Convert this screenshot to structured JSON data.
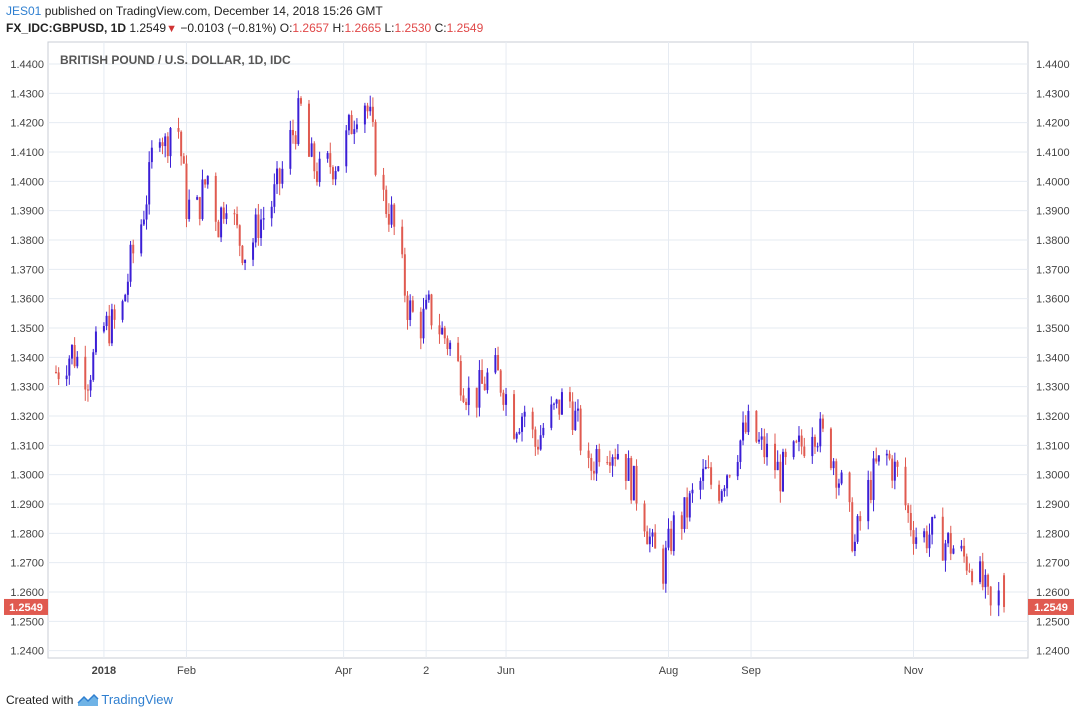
{
  "header": {
    "user": "JES01",
    "published_text": "published on TradingView.com, December 14, 2018 15:26 GMT",
    "symbol": "FX_IDC:GBPUSD, 1D",
    "last": "1.2549",
    "change": "−0.0103 (−0.81%)",
    "o_label": "O:",
    "o_value": "1.2657",
    "h_label": "H:",
    "h_value": "1.2665",
    "l_label": "L:",
    "l_value": "1.2530",
    "c_label": "C:",
    "c_value": "1.2549"
  },
  "footer": {
    "created_with": "Created with",
    "brand": "TradingView"
  },
  "colors": {
    "up": "#3b1fd6",
    "down": "#e05a50",
    "grid": "#e6ebf2",
    "axis_text": "#444444",
    "price_label_bg": "#e05a50",
    "brand": "#2f7fd0"
  },
  "chart_data": {
    "type": "candlestick",
    "title": "BRITISH POUND / U.S. DOLLAR, 1D, IDC",
    "y_axis": {
      "min": 1.2375,
      "max": 1.4475,
      "ticks": [
        "1.2400",
        "1.2500",
        "1.2600",
        "1.2700",
        "1.2800",
        "1.2900",
        "1.3000",
        "1.3100",
        "1.3200",
        "1.3300",
        "1.3400",
        "1.3500",
        "1.3600",
        "1.3700",
        "1.3800",
        "1.3900",
        "1.4000",
        "1.4100",
        "1.4200",
        "1.4300",
        "1.4400"
      ],
      "position": "both"
    },
    "x_axis": {
      "tick_labels": [
        {
          "label": "2018",
          "day": 0
        },
        {
          "label": "Feb",
          "day": 31
        },
        {
          "label": "Apr",
          "day": 90
        },
        {
          "label": "2",
          "day": 121
        },
        {
          "label": "Jun",
          "day": 151
        },
        {
          "label": "Aug",
          "day": 212
        },
        {
          "label": "Sep",
          "day": 243
        },
        {
          "label": "Nov",
          "day": 304
        }
      ],
      "start_day": -21,
      "end_day": 347
    },
    "last_price": "1.2549",
    "grid": true,
    "ohlc_anchors": [
      {
        "day": -18,
        "close": 1.335
      },
      {
        "day": -12,
        "close": 1.342
      },
      {
        "day": -6,
        "close": 1.334
      },
      {
        "day": 0,
        "close": 1.35
      },
      {
        "day": 6,
        "close": 1.352
      },
      {
        "day": 10,
        "close": 1.372
      },
      {
        "day": 14,
        "close": 1.386
      },
      {
        "day": 17,
        "close": 1.4
      },
      {
        "day": 20,
        "close": 1.424
      },
      {
        "day": 23,
        "close": 1.412
      },
      {
        "day": 27,
        "close": 1.426
      },
      {
        "day": 31,
        "close": 1.392
      },
      {
        "day": 35,
        "close": 1.39
      },
      {
        "day": 39,
        "close": 1.402
      },
      {
        "day": 43,
        "close": 1.386
      },
      {
        "day": 46,
        "close": 1.396
      },
      {
        "day": 50,
        "close": 1.382
      },
      {
        "day": 54,
        "close": 1.374
      },
      {
        "day": 58,
        "close": 1.386
      },
      {
        "day": 62,
        "close": 1.39
      },
      {
        "day": 66,
        "close": 1.4
      },
      {
        "day": 70,
        "close": 1.414
      },
      {
        "day": 74,
        "close": 1.424
      },
      {
        "day": 77,
        "close": 1.408
      },
      {
        "day": 81,
        "close": 1.402
      },
      {
        "day": 85,
        "close": 1.406
      },
      {
        "day": 89,
        "close": 1.408
      },
      {
        "day": 93,
        "close": 1.42
      },
      {
        "day": 97,
        "close": 1.432
      },
      {
        "day": 100,
        "close": 1.42
      },
      {
        "day": 104,
        "close": 1.396
      },
      {
        "day": 108,
        "close": 1.388
      },
      {
        "day": 111,
        "close": 1.374
      },
      {
        "day": 114,
        "close": 1.358
      },
      {
        "day": 118,
        "close": 1.35
      },
      {
        "day": 122,
        "close": 1.356
      },
      {
        "day": 126,
        "close": 1.35
      },
      {
        "day": 130,
        "close": 1.344
      },
      {
        "day": 134,
        "close": 1.334
      },
      {
        "day": 138,
        "close": 1.325
      },
      {
        "day": 142,
        "close": 1.33
      },
      {
        "day": 146,
        "close": 1.336
      },
      {
        "day": 150,
        "close": 1.33
      },
      {
        "day": 154,
        "close": 1.318
      },
      {
        "day": 158,
        "close": 1.322
      },
      {
        "day": 162,
        "close": 1.31
      },
      {
        "day": 166,
        "close": 1.318
      },
      {
        "day": 170,
        "close": 1.322
      },
      {
        "day": 174,
        "close": 1.328
      },
      {
        "day": 178,
        "close": 1.316
      },
      {
        "day": 182,
        "close": 1.3
      },
      {
        "day": 186,
        "close": 1.31
      },
      {
        "day": 190,
        "close": 1.31
      },
      {
        "day": 194,
        "close": 1.308
      },
      {
        "day": 198,
        "close": 1.298
      },
      {
        "day": 202,
        "close": 1.29
      },
      {
        "day": 206,
        "close": 1.274
      },
      {
        "day": 210,
        "close": 1.268
      },
      {
        "day": 214,
        "close": 1.282
      },
      {
        "day": 218,
        "close": 1.286
      },
      {
        "day": 222,
        "close": 1.294
      },
      {
        "day": 226,
        "close": 1.3
      },
      {
        "day": 230,
        "close": 1.294
      },
      {
        "day": 234,
        "close": 1.302
      },
      {
        "day": 238,
        "close": 1.31
      },
      {
        "day": 242,
        "close": 1.316
      },
      {
        "day": 246,
        "close": 1.31
      },
      {
        "day": 250,
        "close": 1.306
      },
      {
        "day": 254,
        "close": 1.3
      },
      {
        "day": 258,
        "close": 1.304
      },
      {
        "day": 262,
        "close": 1.31
      },
      {
        "day": 266,
        "close": 1.318
      },
      {
        "day": 270,
        "close": 1.312
      },
      {
        "day": 274,
        "close": 1.306
      },
      {
        "day": 278,
        "close": 1.292
      },
      {
        "day": 282,
        "close": 1.276
      },
      {
        "day": 286,
        "close": 1.292
      },
      {
        "day": 290,
        "close": 1.302
      },
      {
        "day": 294,
        "close": 1.306
      },
      {
        "day": 298,
        "close": 1.3
      },
      {
        "day": 302,
        "close": 1.286
      },
      {
        "day": 306,
        "close": 1.278
      },
      {
        "day": 310,
        "close": 1.28
      },
      {
        "day": 314,
        "close": 1.278
      },
      {
        "day": 318,
        "close": 1.276
      },
      {
        "day": 322,
        "close": 1.272
      },
      {
        "day": 326,
        "close": 1.27
      },
      {
        "day": 330,
        "close": 1.262
      },
      {
        "day": 334,
        "close": 1.25
      },
      {
        "day": 337,
        "close": 1.262
      }
    ],
    "final_candle": {
      "open": 1.2657,
      "high": 1.2665,
      "low": 1.253,
      "close": 1.2549
    }
  }
}
